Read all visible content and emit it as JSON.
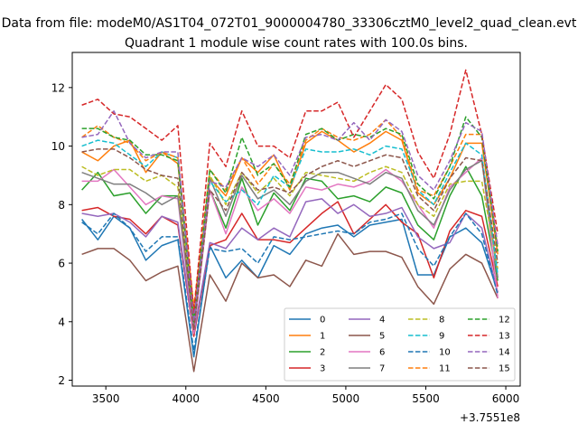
{
  "chart_data": {
    "type": "line",
    "suptitle": "Data from file: modeM0/AS1T04_072T01_9000004780_33306cztM0_level2_quad_clean.evt",
    "title": "Quadrant 1 module wise count rates with 100.0s bins.",
    "xlabel": "",
    "ylabel": "",
    "x_offset_label": "+3.7551e8",
    "xlim": [
      3290,
      6090
    ],
    "ylim": [
      1.8,
      13.2
    ],
    "xticks": [
      3500,
      4000,
      4500,
      5000,
      5500,
      6000
    ],
    "yticks": [
      2,
      4,
      6,
      8,
      10,
      12
    ],
    "x": [
      3350,
      3450,
      3550,
      3650,
      3750,
      3850,
      3950,
      4050,
      4150,
      4250,
      4350,
      4450,
      4550,
      4650,
      4750,
      4850,
      4950,
      5050,
      5150,
      5250,
      5350,
      5450,
      5550,
      5650,
      5750,
      5850,
      5950
    ],
    "legend": {
      "location": "lower-right",
      "columns": 4
    },
    "series": [
      {
        "name": "0",
        "color": "#1f77b4",
        "dash": "solid",
        "values": [
          7.5,
          6.8,
          7.6,
          7.2,
          6.1,
          6.6,
          6.8,
          2.8,
          6.6,
          5.5,
          6.1,
          5.5,
          6.6,
          6.3,
          7.0,
          7.2,
          7.3,
          6.9,
          7.3,
          7.4,
          7.5,
          5.6,
          5.6,
          6.9,
          7.2,
          6.7,
          5.0
        ]
      },
      {
        "name": "1",
        "color": "#ff7f0e",
        "dash": "solid",
        "values": [
          9.8,
          9.5,
          10.0,
          10.2,
          9.1,
          9.8,
          9.4,
          4.3,
          8.9,
          8.3,
          9.6,
          9.1,
          9.7,
          8.5,
          10.1,
          10.5,
          10.2,
          9.8,
          10.1,
          10.5,
          10.2,
          8.4,
          8.0,
          8.9,
          10.1,
          10.1,
          6.3
        ]
      },
      {
        "name": "2",
        "color": "#2ca02c",
        "dash": "solid",
        "values": [
          8.5,
          9.1,
          8.3,
          8.4,
          7.7,
          8.3,
          8.3,
          3.7,
          8.5,
          7.2,
          8.9,
          7.3,
          8.4,
          7.8,
          8.9,
          8.8,
          8.2,
          8.3,
          8.1,
          8.6,
          8.4,
          7.3,
          6.8,
          8.3,
          9.3,
          8.3,
          5.4
        ]
      },
      {
        "name": "3",
        "color": "#d62728",
        "dash": "solid",
        "values": [
          7.8,
          7.9,
          7.6,
          7.5,
          7.0,
          7.6,
          7.3,
          3.5,
          6.6,
          6.8,
          7.7,
          6.8,
          6.8,
          6.7,
          7.2,
          7.7,
          8.1,
          7.0,
          7.5,
          8.0,
          7.4,
          7.0,
          5.5,
          7.1,
          7.8,
          7.6,
          5.2
        ]
      },
      {
        "name": "4",
        "color": "#9467bd",
        "dash": "solid",
        "values": [
          7.7,
          7.6,
          7.7,
          7.4,
          6.9,
          7.6,
          7.4,
          3.6,
          6.7,
          6.5,
          7.2,
          6.8,
          7.2,
          6.9,
          8.1,
          8.2,
          7.7,
          8.0,
          7.6,
          7.7,
          7.9,
          6.9,
          6.5,
          6.7,
          7.7,
          7.2,
          5.0
        ]
      },
      {
        "name": "5",
        "color": "#8c564b",
        "dash": "solid",
        "values": [
          6.3,
          6.5,
          6.5,
          6.1,
          5.4,
          5.7,
          5.9,
          2.3,
          5.6,
          4.7,
          6.0,
          5.5,
          5.6,
          5.2,
          6.1,
          5.9,
          7.0,
          6.3,
          6.4,
          6.4,
          6.2,
          5.2,
          4.6,
          5.8,
          6.3,
          6.0,
          4.8
        ]
      },
      {
        "name": "6",
        "color": "#e377c2",
        "dash": "solid",
        "values": [
          8.8,
          8.8,
          9.2,
          8.6,
          8.0,
          8.3,
          8.2,
          3.6,
          8.5,
          7.0,
          8.6,
          7.8,
          8.2,
          7.7,
          8.6,
          8.5,
          8.7,
          8.6,
          8.8,
          9.2,
          8.8,
          8.0,
          7.2,
          8.6,
          9.1,
          9.6,
          4.8
        ]
      },
      {
        "name": "7",
        "color": "#7f7f7f",
        "dash": "solid",
        "values": [
          9.1,
          8.9,
          8.7,
          8.7,
          8.4,
          8.0,
          8.3,
          3.8,
          8.9,
          7.6,
          9.0,
          8.2,
          8.5,
          8.0,
          8.8,
          9.1,
          9.1,
          8.9,
          8.7,
          9.1,
          8.9,
          7.8,
          7.3,
          8.5,
          9.2,
          9.5,
          5.5
        ]
      },
      {
        "name": "8",
        "color": "#bcbd22",
        "dash": "dash",
        "values": [
          9.3,
          9.0,
          9.2,
          9.2,
          8.8,
          9.0,
          8.6,
          4.0,
          9.0,
          8.0,
          9.1,
          8.4,
          8.9,
          8.3,
          9.1,
          9.0,
          8.9,
          8.8,
          9.1,
          9.3,
          9.1,
          8.0,
          7.6,
          8.7,
          8.8,
          8.8,
          5.8
        ]
      },
      {
        "name": "9",
        "color": "#17becf",
        "dash": "dash",
        "values": [
          10.0,
          10.2,
          10.1,
          9.7,
          9.3,
          9.8,
          9.6,
          4.1,
          8.8,
          8.1,
          8.5,
          8.0,
          9.0,
          8.6,
          9.9,
          9.8,
          9.8,
          9.9,
          9.7,
          10.0,
          9.9,
          8.5,
          8.0,
          9.1,
          10.1,
          9.7,
          5.6
        ]
      },
      {
        "name": "10",
        "color": "#1f77b4",
        "dash": "dash",
        "values": [
          7.4,
          7.0,
          7.7,
          7.2,
          6.4,
          6.9,
          6.9,
          3.0,
          6.5,
          6.4,
          6.5,
          6.0,
          6.9,
          6.8,
          6.9,
          7.0,
          7.1,
          7.0,
          7.4,
          7.5,
          7.7,
          6.5,
          5.9,
          6.9,
          7.7,
          7.0,
          4.9
        ]
      },
      {
        "name": "11",
        "color": "#ff7f0e",
        "dash": "dash",
        "values": [
          10.3,
          10.7,
          10.3,
          10.1,
          9.5,
          9.8,
          9.6,
          4.5,
          9.2,
          8.5,
          9.6,
          8.7,
          9.4,
          8.7,
          10.2,
          10.6,
          10.3,
          10.2,
          10.4,
          10.9,
          10.3,
          8.5,
          8.3,
          9.3,
          10.4,
          10.4,
          6.5
        ]
      },
      {
        "name": "12",
        "color": "#2ca02c",
        "dash": "dash",
        "values": [
          10.6,
          10.6,
          10.3,
          10.2,
          9.7,
          9.7,
          9.5,
          4.0,
          9.2,
          8.4,
          10.3,
          9.0,
          9.4,
          8.6,
          10.4,
          10.6,
          10.2,
          10.4,
          10.3,
          10.6,
          10.4,
          8.7,
          8.2,
          9.3,
          11.0,
          10.3,
          6.4
        ]
      },
      {
        "name": "13",
        "color": "#d62728",
        "dash": "dash",
        "values": [
          11.4,
          11.6,
          11.1,
          11.0,
          10.6,
          10.2,
          10.7,
          4.3,
          10.1,
          9.3,
          11.2,
          10.0,
          10.0,
          9.6,
          11.2,
          11.2,
          11.5,
          10.3,
          11.2,
          12.1,
          11.6,
          9.8,
          8.9,
          10.4,
          12.6,
          10.4,
          7.0
        ]
      },
      {
        "name": "14",
        "color": "#9467bd",
        "dash": "dash",
        "values": [
          10.3,
          10.4,
          11.2,
          10.1,
          9.6,
          9.8,
          9.8,
          4.0,
          8.8,
          8.6,
          9.6,
          9.3,
          9.7,
          9.0,
          10.3,
          10.4,
          10.2,
          10.8,
          10.2,
          10.9,
          10.5,
          9.0,
          8.5,
          9.5,
          10.8,
          10.5,
          6.6
        ]
      },
      {
        "name": "15",
        "color": "#8c564b",
        "dash": "dash",
        "values": [
          9.8,
          9.9,
          9.9,
          9.6,
          9.2,
          9.0,
          8.9,
          3.7,
          8.5,
          7.8,
          9.1,
          8.5,
          8.6,
          8.4,
          9.0,
          9.3,
          9.5,
          9.3,
          9.5,
          9.7,
          9.6,
          8.3,
          7.8,
          8.9,
          9.6,
          9.5,
          6.0
        ]
      }
    ]
  }
}
